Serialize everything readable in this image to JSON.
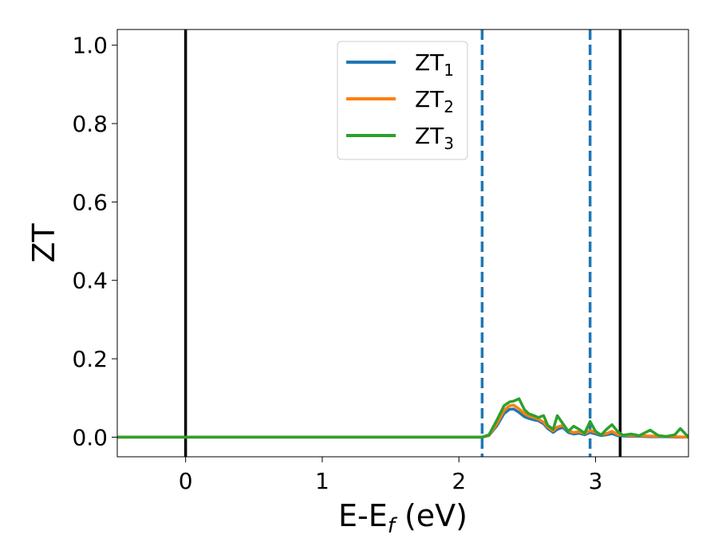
{
  "chart_data": {
    "type": "line",
    "xlabel": "E-E",
    "xlabel_sub": "f",
    "xlabel_unit": " (eV)",
    "ylabel": "ZT",
    "xlim": [
      -0.5,
      3.68
    ],
    "ylim": [
      -0.05,
      1.04
    ],
    "xticks": [
      0,
      1,
      2,
      3
    ],
    "yticks": [
      0.0,
      0.2,
      0.4,
      0.6,
      0.8,
      1.0
    ],
    "xtick_labels": [
      "0",
      "1",
      "2",
      "3"
    ],
    "ytick_labels": [
      "0.0",
      "0.2",
      "0.4",
      "0.6",
      "0.8",
      "1.0"
    ],
    "legend_position": "top-center",
    "vlines": [
      {
        "x": 0.0,
        "style": "solid",
        "color": "#000000"
      },
      {
        "x": 3.18,
        "style": "solid",
        "color": "#000000"
      },
      {
        "x": 2.17,
        "style": "dashed",
        "color": "#1f77b4"
      },
      {
        "x": 2.96,
        "style": "dashed",
        "color": "#1f77b4"
      }
    ],
    "series": [
      {
        "name": "ZT",
        "sub": "1",
        "color": "#1f77b4",
        "x": [
          -0.5,
          2.17,
          2.22,
          2.28,
          2.33,
          2.37,
          2.4,
          2.44,
          2.48,
          2.51,
          2.55,
          2.58,
          2.62,
          2.65,
          2.69,
          2.72,
          2.76,
          2.8,
          2.84,
          2.88,
          2.92,
          2.96,
          3.0,
          3.04,
          3.08,
          3.12,
          3.16,
          3.2,
          3.26,
          3.32,
          3.4,
          3.5,
          3.6,
          3.68
        ],
        "y": [
          0.0,
          0.0,
          0.004,
          0.03,
          0.06,
          0.071,
          0.072,
          0.063,
          0.052,
          0.048,
          0.044,
          0.042,
          0.034,
          0.022,
          0.012,
          0.02,
          0.025,
          0.012,
          0.008,
          0.01,
          0.006,
          0.012,
          0.008,
          0.004,
          0.006,
          0.009,
          0.004,
          0.003,
          0.002,
          0.002,
          0.001,
          0.001,
          0.0,
          0.0
        ]
      },
      {
        "name": "ZT",
        "sub": "2",
        "color": "#ff7f0e",
        "x": [
          -0.5,
          2.17,
          2.22,
          2.28,
          2.33,
          2.37,
          2.4,
          2.44,
          2.48,
          2.51,
          2.55,
          2.58,
          2.62,
          2.65,
          2.69,
          2.72,
          2.76,
          2.8,
          2.84,
          2.88,
          2.92,
          2.96,
          3.0,
          3.04,
          3.08,
          3.12,
          3.16,
          3.2,
          3.26,
          3.32,
          3.4,
          3.5,
          3.6,
          3.68
        ],
        "y": [
          0.0,
          0.0,
          0.005,
          0.035,
          0.068,
          0.08,
          0.082,
          0.072,
          0.06,
          0.054,
          0.05,
          0.046,
          0.038,
          0.026,
          0.016,
          0.026,
          0.03,
          0.016,
          0.012,
          0.014,
          0.009,
          0.017,
          0.012,
          0.007,
          0.009,
          0.015,
          0.007,
          0.005,
          0.004,
          0.004,
          0.003,
          0.002,
          0.001,
          0.0
        ]
      },
      {
        "name": "ZT",
        "sub": "3",
        "color": "#2ca02c",
        "x": [
          -0.5,
          2.17,
          2.22,
          2.28,
          2.33,
          2.37,
          2.4,
          2.44,
          2.48,
          2.51,
          2.55,
          2.58,
          2.62,
          2.65,
          2.69,
          2.72,
          2.76,
          2.8,
          2.84,
          2.88,
          2.92,
          2.96,
          3.0,
          3.04,
          3.08,
          3.12,
          3.16,
          3.2,
          3.26,
          3.32,
          3.4,
          3.46,
          3.52,
          3.58,
          3.62,
          3.68
        ],
        "y": [
          0.0,
          0.0,
          0.006,
          0.045,
          0.08,
          0.09,
          0.092,
          0.098,
          0.07,
          0.06,
          0.055,
          0.05,
          0.055,
          0.03,
          0.02,
          0.055,
          0.035,
          0.015,
          0.028,
          0.02,
          0.01,
          0.04,
          0.015,
          0.005,
          0.02,
          0.032,
          0.015,
          0.005,
          0.008,
          0.004,
          0.018,
          0.004,
          0.002,
          0.006,
          0.022,
          0.0
        ]
      }
    ]
  }
}
